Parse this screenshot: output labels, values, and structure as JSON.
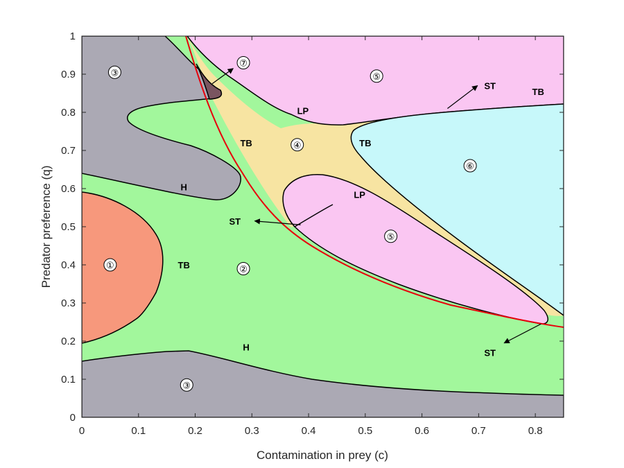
{
  "chart_data": {
    "type": "area",
    "xlabel": "Contamination in prey (c)",
    "ylabel": "Predator preference (q)",
    "xlim": [
      0,
      0.85
    ],
    "ylim": [
      0,
      1
    ],
    "xticks": [
      "0",
      "0.1",
      "0.2",
      "0.3",
      "0.4",
      "0.5",
      "0.6",
      "0.7",
      "0.8"
    ],
    "yticks": [
      "0",
      "0.1",
      "0.2",
      "0.3",
      "0.4",
      "0.5",
      "0.6",
      "0.7",
      "0.8",
      "0.9",
      "1"
    ],
    "grid": false,
    "colors": {
      "region_1": "#f7987c",
      "region_2": "#a2f79c",
      "region_3": "#aba9b4",
      "region_4": "#f7e4a2",
      "region_5": "#fac6f2",
      "region_6": "#c7f8fa",
      "region_7": "#7a5560",
      "boundary": "#000000",
      "st_curve": "#e8000b"
    },
    "regions": [
      {
        "label": "①",
        "x": 0.05,
        "y": 0.4
      },
      {
        "label": "②",
        "x": 0.285,
        "y": 0.39
      },
      {
        "label": "③",
        "x": 0.058,
        "y": 0.905
      },
      {
        "label": "③",
        "x": 0.185,
        "y": 0.085
      },
      {
        "label": "④",
        "x": 0.38,
        "y": 0.715
      },
      {
        "label": "⑤",
        "x": 0.52,
        "y": 0.895
      },
      {
        "label": "⑤",
        "x": 0.545,
        "y": 0.475
      },
      {
        "label": "⑥",
        "x": 0.685,
        "y": 0.66
      },
      {
        "label": "⑦",
        "x": 0.285,
        "y": 0.93
      }
    ],
    "annotations": [
      {
        "text": "TB",
        "x": 0.18,
        "y": 0.4
      },
      {
        "text": "H",
        "x": 0.18,
        "y": 0.605
      },
      {
        "text": "H",
        "x": 0.29,
        "y": 0.185
      },
      {
        "text": "ST",
        "x": 0.27,
        "y": 0.515
      },
      {
        "text": "TB",
        "x": 0.29,
        "y": 0.72
      },
      {
        "text": "LP",
        "x": 0.39,
        "y": 0.805
      },
      {
        "text": "TB",
        "x": 0.5,
        "y": 0.72
      },
      {
        "text": "LP",
        "x": 0.49,
        "y": 0.585
      },
      {
        "text": "ST",
        "x": 0.72,
        "y": 0.87
      },
      {
        "text": "TB",
        "x": 0.805,
        "y": 0.855
      },
      {
        "text": "ST",
        "x": 0.72,
        "y": 0.17
      }
    ],
    "arrows": [
      {
        "from": [
          0.23,
          0.875
        ],
        "to": [
          0.267,
          0.915
        ]
      },
      {
        "from": [
          0.386,
          0.505
        ],
        "to": [
          0.305,
          0.515
        ]
      },
      {
        "from": [
          0.645,
          0.81
        ],
        "to": [
          0.698,
          0.87
        ]
      },
      {
        "from": [
          0.81,
          0.245
        ],
        "to": [
          0.745,
          0.195
        ]
      }
    ]
  }
}
